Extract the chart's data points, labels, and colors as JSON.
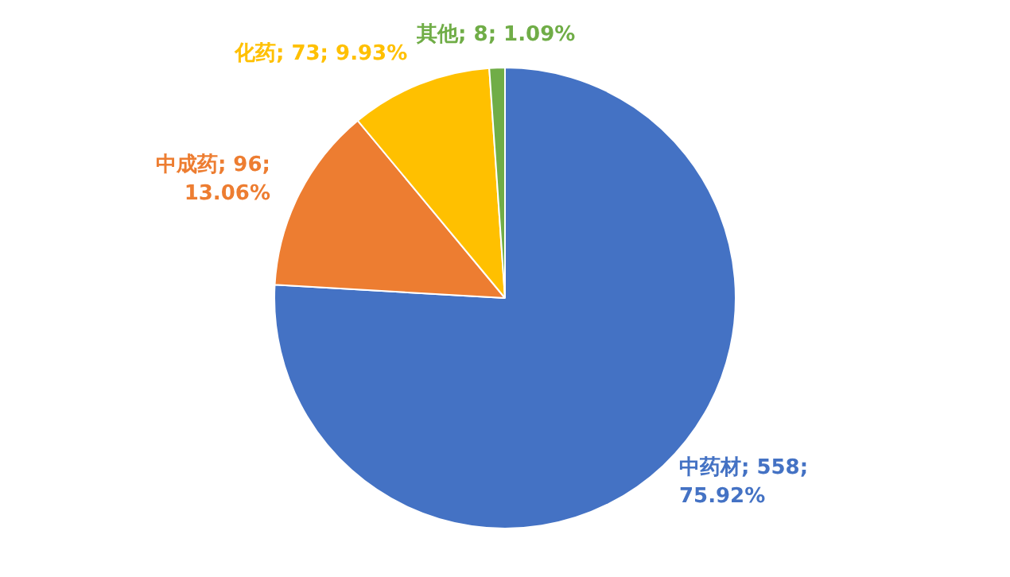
{
  "chart_data": {
    "type": "pie",
    "categories": [
      "中药材",
      "中成药",
      "化药",
      "其他"
    ],
    "values": [
      558,
      96,
      73,
      8
    ],
    "value_labels": [
      "558; 75.92%",
      "96; 13.06%",
      "73; 9.93%",
      "8; 1.09%"
    ],
    "colors": [
      "#4472c4",
      "#ed7d31",
      "#ffc000",
      "#70ad47"
    ],
    "legend": false
  }
}
